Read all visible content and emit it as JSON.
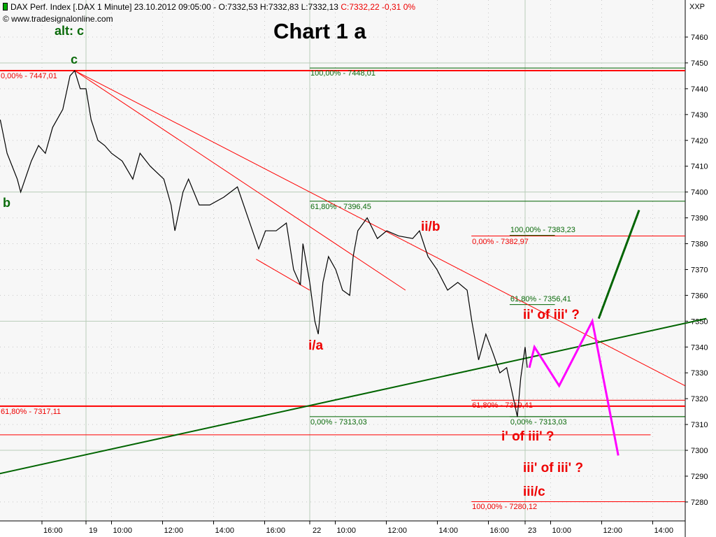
{
  "header": {
    "instrument": "DAX Perf. Index [.DAX  1 Minute] 23.10.2012 09:05:00 - O:7332,53 H:7332,83 L:7332,13",
    "change": "C:7332,22 -0,31 0%",
    "copyright": "© www.tradesignalonline.com",
    "currency": "XXP"
  },
  "chart_data": {
    "type": "line",
    "title": "Chart 1 a",
    "ylim": [
      7276,
      7472
    ],
    "y_ticks": [
      "7460",
      "7450",
      "7440",
      "7430",
      "7420",
      "7410",
      "7400",
      "7390",
      "7380",
      "7370",
      "7360",
      "7350",
      "7340",
      "7330",
      "7320",
      "7310",
      "7300",
      "7290",
      "7280"
    ],
    "x_ticks": [
      "16:00",
      "19",
      "10:00",
      "12:00",
      "14:00",
      "16:00",
      "22",
      "10:00",
      "12:00",
      "14:00",
      "16:00",
      "23",
      "10:00",
      "12:00",
      "14:00"
    ],
    "grid": true,
    "colors": {
      "price": "#000000",
      "fib_red": "#ff0000",
      "fib_green": "#006400",
      "projection_magenta": "#ff00ff",
      "projection_green": "#006400",
      "background": "#f7f7f7"
    },
    "price": [
      [
        "18 14:22",
        7428
      ],
      [
        "18 14:38",
        7415
      ],
      [
        "18 15:02",
        7405
      ],
      [
        "18 15:10",
        7400
      ],
      [
        "18 15:35",
        7412
      ],
      [
        "18 15:52",
        7418
      ],
      [
        "18 16:08",
        7415
      ],
      [
        "18 16:25",
        7425
      ],
      [
        "18 16:49",
        7432
      ],
      [
        "18 17:06",
        7445
      ],
      [
        "18 17:17",
        7447
      ],
      [
        "18 17:30",
        7440
      ],
      [
        "19 09:00",
        7440
      ],
      [
        "19 09:12",
        7428
      ],
      [
        "19 09:28",
        7420
      ],
      [
        "19 09:44",
        7418
      ],
      [
        "19 10:00",
        7415
      ],
      [
        "19 10:25",
        7412
      ],
      [
        "19 10:50",
        7405
      ],
      [
        "19 11:07",
        7415
      ],
      [
        "19 11:31",
        7410
      ],
      [
        "19 12:03",
        7405
      ],
      [
        "19 12:20",
        7395
      ],
      [
        "19 12:29",
        7385
      ],
      [
        "19 12:48",
        7400
      ],
      [
        "19 13:01",
        7405
      ],
      [
        "19 13:26",
        7395
      ],
      [
        "19 13:51",
        7395
      ],
      [
        "19 14:24",
        7398
      ],
      [
        "19 14:56",
        7402
      ],
      [
        "19 15:21",
        7390
      ],
      [
        "19 15:46",
        7378
      ],
      [
        "19 16:02",
        7385
      ],
      [
        "19 16:27",
        7385
      ],
      [
        "19 16:51",
        7388
      ],
      [
        "19 17:08",
        7370
      ],
      [
        "19 17:24",
        7364
      ],
      [
        "19 17:30",
        7380
      ],
      [
        "22 09:00",
        7365
      ],
      [
        "22 09:12",
        7350
      ],
      [
        "22 09:20",
        7345
      ],
      [
        "22 09:31",
        7365
      ],
      [
        "22 09:44",
        7375
      ],
      [
        "22 10:01",
        7370
      ],
      [
        "22 10:17",
        7362
      ],
      [
        "22 10:34",
        7360
      ],
      [
        "22 10:42",
        7375
      ],
      [
        "22 10:53",
        7385
      ],
      [
        "22 11:15",
        7390
      ],
      [
        "22 11:39",
        7382
      ],
      [
        "22 12:01",
        7385
      ],
      [
        "22 12:29",
        7383
      ],
      [
        "22 13:02",
        7382
      ],
      [
        "22 13:18",
        7385
      ],
      [
        "22 13:38",
        7375
      ],
      [
        "22 13:59",
        7370
      ],
      [
        "22 14:24",
        7362
      ],
      [
        "22 14:48",
        7365
      ],
      [
        "22 15:10",
        7362
      ],
      [
        "22 15:21",
        7350
      ],
      [
        "22 15:37",
        7335
      ],
      [
        "22 15:54",
        7345
      ],
      [
        "22 16:10",
        7338
      ],
      [
        "22 16:27",
        7330
      ],
      [
        "22 16:43",
        7332
      ],
      [
        "22 16:59",
        7320
      ],
      [
        "22 17:08",
        7313
      ],
      [
        "22 17:16",
        7328
      ],
      [
        "23 09:00",
        7340
      ],
      [
        "23 09:05",
        7332
      ]
    ],
    "trendlines": [
      {
        "color": "red",
        "from": [
          "18 17:17",
          7447
        ],
        "to": [
          "23 15:16",
          7325
        ]
      },
      {
        "color": "red",
        "from": [
          "18 17:17",
          7447
        ],
        "to": [
          "22 12:45",
          7362
        ]
      },
      {
        "color": "red",
        "from": [
          "19 15:40",
          7374
        ],
        "to": [
          "22 09:00",
          7362
        ]
      },
      {
        "color": "green",
        "from": [
          "18 14:21",
          7291
        ],
        "to": [
          "23 16:06",
          7351
        ]
      }
    ],
    "levels": [
      {
        "price": 7447.01,
        "label": "0,00% - 7447,01",
        "color": "red",
        "thick": true,
        "from": "start"
      },
      {
        "price": 7448.01,
        "label": "100,00% - 7448,01",
        "color": "green",
        "from": "22 09:00"
      },
      {
        "price": 7396.45,
        "label": "61,80% - 7396,45",
        "color": "green",
        "from": "22 09:00"
      },
      {
        "price": 7313.03,
        "label": "0,00% - 7313,03",
        "color": "green",
        "from": "22 09:00"
      },
      {
        "price": 7317.11,
        "label": "61,80% - 7317,11",
        "color": "red",
        "thick": true,
        "from": "start"
      },
      {
        "price": 7306,
        "label": "",
        "color": "red",
        "from": "start",
        "to": "23 13:55"
      },
      {
        "price": 7382.97,
        "label": "0,00% - 7382,97",
        "color": "red",
        "from": "22 15:20"
      },
      {
        "price": 7383.23,
        "label": "100,00% - 7383,23",
        "color": "green",
        "from": "22 16:50",
        "to": "23 10:10"
      },
      {
        "price": 7356.41,
        "label": "61,80% - 7356,41",
        "color": "green",
        "from": "22 16:50",
        "to": "23 10:10"
      },
      {
        "price": 7319.41,
        "label": "61,80% - 7319,41",
        "color": "red",
        "from": "22 15:20"
      },
      {
        "price": 7313.03,
        "label": "0,00% - 7313,03",
        "color": "green",
        "from": "22 16:50"
      },
      {
        "price": 7280.12,
        "label": "100,00% - 7280,12",
        "color": "red",
        "from": "22 15:20"
      }
    ],
    "projection_magenta": [
      [
        "23 09:10",
        7332
      ],
      [
        "23 09:22",
        7340
      ],
      [
        "23 10:20",
        7325
      ],
      [
        "23 11:38",
        7350
      ],
      [
        "23 12:39",
        7298
      ]
    ],
    "projection_green": [
      [
        "23 11:53",
        7351
      ],
      [
        "23 13:28",
        7393
      ]
    ],
    "annotations": [
      "alt: c",
      "c",
      "b",
      "i/a",
      "ii/b",
      "ii' of iii' ?",
      "i' of iii' ?",
      "iii' of iii' ?",
      "iii/c"
    ]
  }
}
